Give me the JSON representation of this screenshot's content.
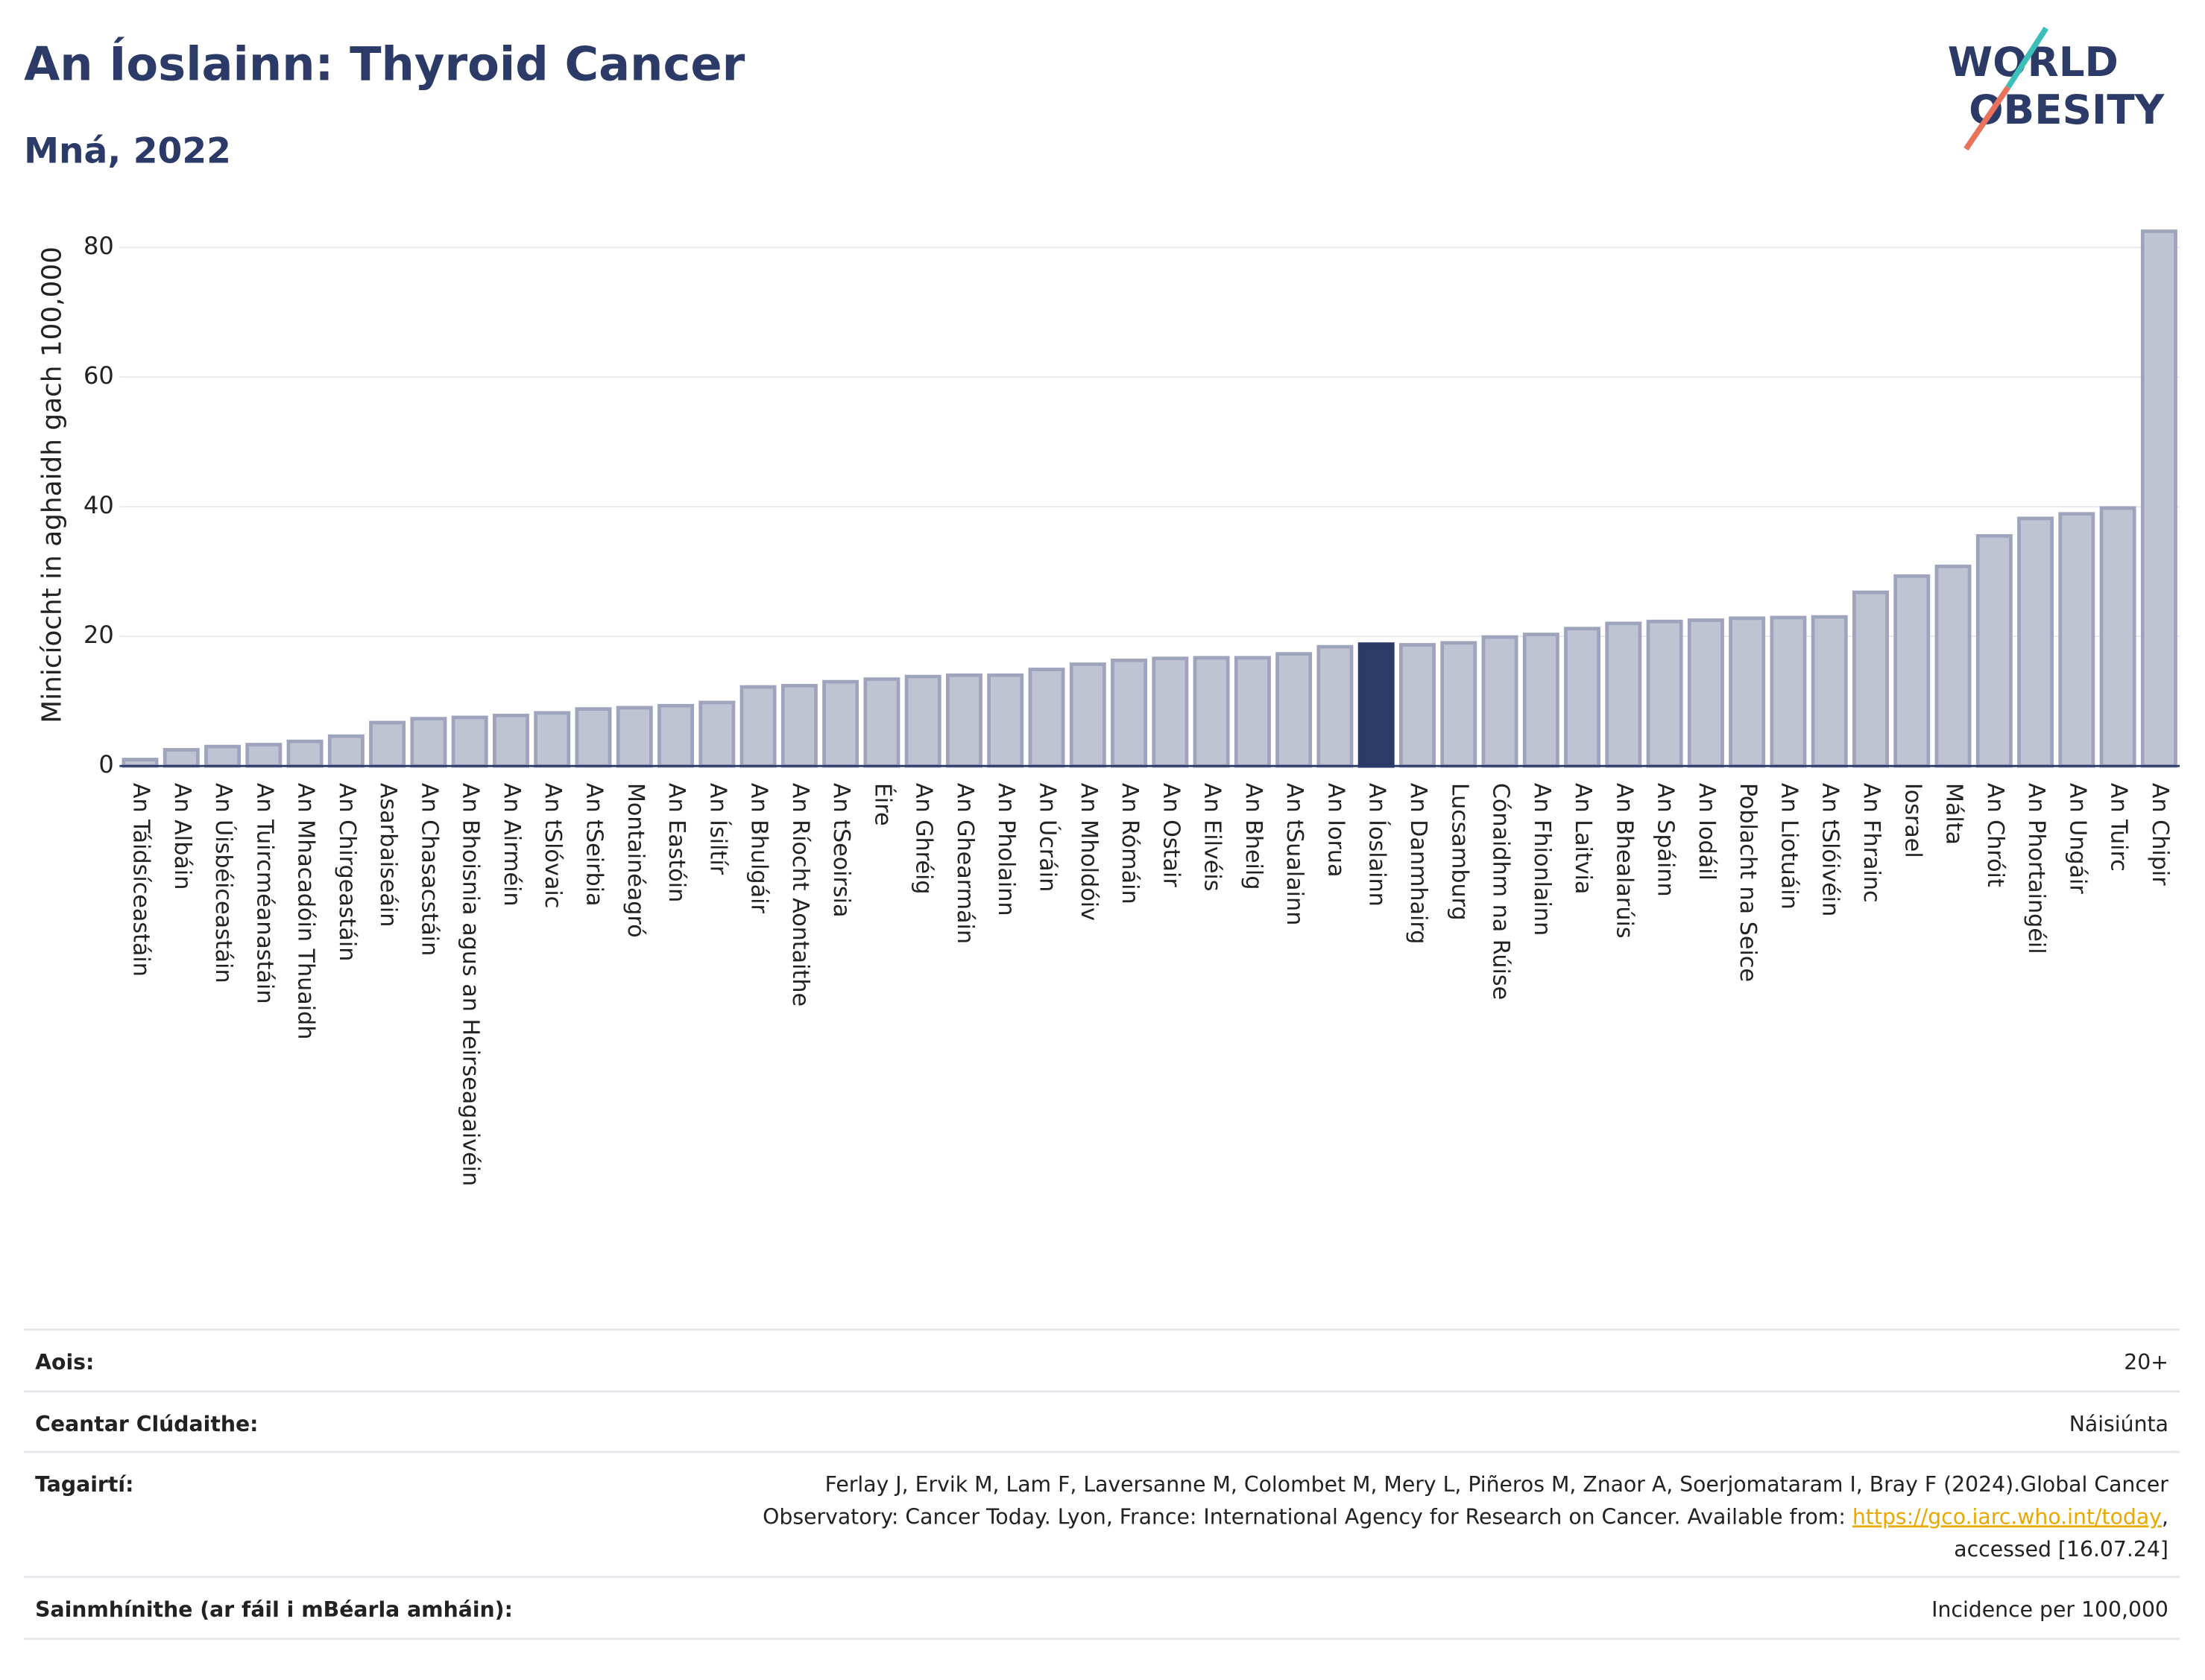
{
  "chart_data": {
    "type": "bar",
    "title": "An Íoslainn: Thyroid Cancer",
    "subtitle": "Mná, 2022",
    "logo": [
      "WORLD",
      "OBESITY"
    ],
    "y_label": "Minicíocht in aghaidh gach 100,000",
    "categories": [
      "An Táidsíceastáin",
      "An Albáin",
      "An Úisbéiceastáin",
      "An Tuircméanastáin",
      "An Mhacadóin Thuaidh",
      "An Chirgeastáin",
      "Asarbaiseáin",
      "An Chasacstáin",
      "An Bhoisnia agus an Heirseagaivéin",
      "An Airméin",
      "An tSlóvaic",
      "An tSeirbia",
      "Montainéagró",
      "An Eastóin",
      "An Ísiltír",
      "An Bhulgáir",
      "An Ríocht Aontaithe",
      "An tSeoirsia",
      "Éire",
      "An Ghréig",
      "An Ghearmáin",
      "An Pholainn",
      "An Úcráin",
      "An Mholdóiv",
      "An Rómáin",
      "An Ostair",
      "An Eilvéis",
      "An Bheilg",
      "An tSualainn",
      "An Iorua",
      "An Íoslainn",
      "An Danmhairg",
      "Lucsamburg",
      "Cónaidhm na Rúise",
      "An Fhionlainn",
      "An Laitvia",
      "An Bhealarúis",
      "An Spáinn",
      "An Iodáil",
      "Poblacht na Seice",
      "An Liotuáin",
      "An tSlóivéin",
      "An Fhrainc",
      "Iosrael",
      "Málta",
      "An Chróit",
      "An Phortaingéil",
      "An Ungáir",
      "An Tuirc",
      "An Chipir"
    ],
    "values": [
      1.0,
      2.5,
      3.0,
      3.3,
      3.8,
      4.6,
      6.7,
      7.3,
      7.5,
      7.8,
      8.2,
      8.8,
      9.0,
      9.3,
      9.8,
      12.2,
      12.4,
      13.0,
      13.4,
      13.8,
      14.0,
      14.0,
      14.9,
      15.7,
      16.3,
      16.6,
      16.7,
      16.7,
      17.3,
      18.4,
      18.8,
      18.7,
      19.0,
      19.9,
      20.3,
      21.2,
      22.0,
      22.3,
      22.5,
      22.8,
      22.9,
      23.0,
      26.8,
      29.3,
      30.8,
      35.5,
      38.2,
      38.9,
      39.8,
      82.5
    ],
    "color": "#bcc0d0",
    "highlight": "An Íoslainn",
    "highlight_color": "#2b3a67",
    "ylim": [
      0,
      85
    ],
    "yticks": [
      0,
      20,
      40,
      60,
      80
    ],
    "grid": true
  },
  "footer": {
    "rows": [
      {
        "label": "Aois:",
        "value": "20+"
      },
      {
        "label": "Ceantar Clúdaithe:",
        "value": "Náisiúnta"
      },
      {
        "label": "Tagairtí:",
        "lines": [
          "Ferlay J, Ervik M, Lam F, Laversanne M, Colombet M, Mery L, Piñeros M, Znaor A, Soerjomataram I, Bray F (2024).Global Cancer",
          "Observatory: Cancer Today. Lyon, France: International Agency for Research on Cancer. Available from: "
        ],
        "link": "https://gco.iarc.who.int/today",
        "after_link": ",",
        "last": "accessed [16.07.24]"
      },
      {
        "label": "Sainmhínithe (ar fáil i mBéarla amháin):",
        "value": "Incidence per 100,000"
      }
    ]
  }
}
